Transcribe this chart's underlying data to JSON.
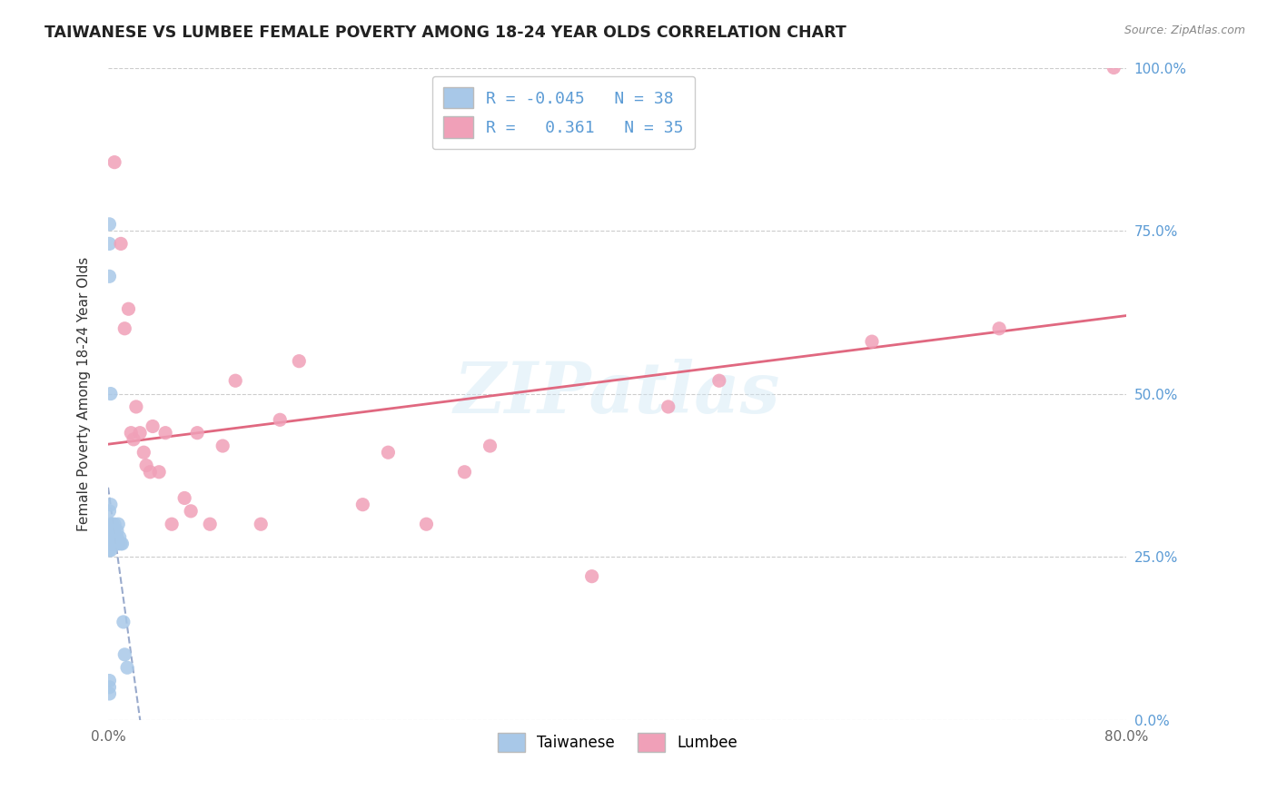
{
  "title": "TAIWANESE VS LUMBEE FEMALE POVERTY AMONG 18-24 YEAR OLDS CORRELATION CHART",
  "source": "Source: ZipAtlas.com",
  "ylabel": "Female Poverty Among 18-24 Year Olds",
  "xlim": [
    0,
    0.8
  ],
  "ylim": [
    0,
    1.0
  ],
  "taiwanese_R": -0.045,
  "taiwanese_N": 38,
  "lumbee_R": 0.361,
  "lumbee_N": 35,
  "taiwanese_color": "#a8c8e8",
  "lumbee_color": "#f0a0b8",
  "taiwanese_line_color": "#99aacc",
  "lumbee_line_color": "#e06880",
  "watermark": "ZIPatlas",
  "taiwanese_x": [
    0.001,
    0.001,
    0.001,
    0.001,
    0.001,
    0.001,
    0.001,
    0.002,
    0.002,
    0.002,
    0.002,
    0.002,
    0.003,
    0.003,
    0.003,
    0.003,
    0.004,
    0.004,
    0.004,
    0.005,
    0.005,
    0.005,
    0.006,
    0.006,
    0.007,
    0.007,
    0.008,
    0.008,
    0.009,
    0.01,
    0.011,
    0.012,
    0.013,
    0.015,
    0.001,
    0.001,
    0.001,
    0.002
  ],
  "taiwanese_y": [
    0.76,
    0.73,
    0.68,
    0.32,
    0.29,
    0.28,
    0.26,
    0.33,
    0.3,
    0.28,
    0.27,
    0.26,
    0.3,
    0.29,
    0.28,
    0.27,
    0.29,
    0.28,
    0.27,
    0.3,
    0.28,
    0.27,
    0.28,
    0.27,
    0.29,
    0.28,
    0.3,
    0.27,
    0.28,
    0.27,
    0.27,
    0.15,
    0.1,
    0.08,
    0.06,
    0.05,
    0.04,
    0.5
  ],
  "lumbee_x": [
    0.005,
    0.01,
    0.013,
    0.016,
    0.018,
    0.02,
    0.022,
    0.025,
    0.028,
    0.03,
    0.033,
    0.035,
    0.04,
    0.045,
    0.05,
    0.06,
    0.065,
    0.07,
    0.08,
    0.09,
    0.1,
    0.12,
    0.135,
    0.15,
    0.2,
    0.22,
    0.25,
    0.28,
    0.3,
    0.38,
    0.44,
    0.48,
    0.6,
    0.7,
    0.79
  ],
  "lumbee_y": [
    0.855,
    0.73,
    0.6,
    0.63,
    0.44,
    0.43,
    0.48,
    0.44,
    0.41,
    0.39,
    0.38,
    0.45,
    0.38,
    0.44,
    0.3,
    0.34,
    0.32,
    0.44,
    0.3,
    0.42,
    0.52,
    0.3,
    0.46,
    0.55,
    0.33,
    0.41,
    0.3,
    0.38,
    0.42,
    0.22,
    0.48,
    0.52,
    0.58,
    0.6,
    1.0
  ]
}
